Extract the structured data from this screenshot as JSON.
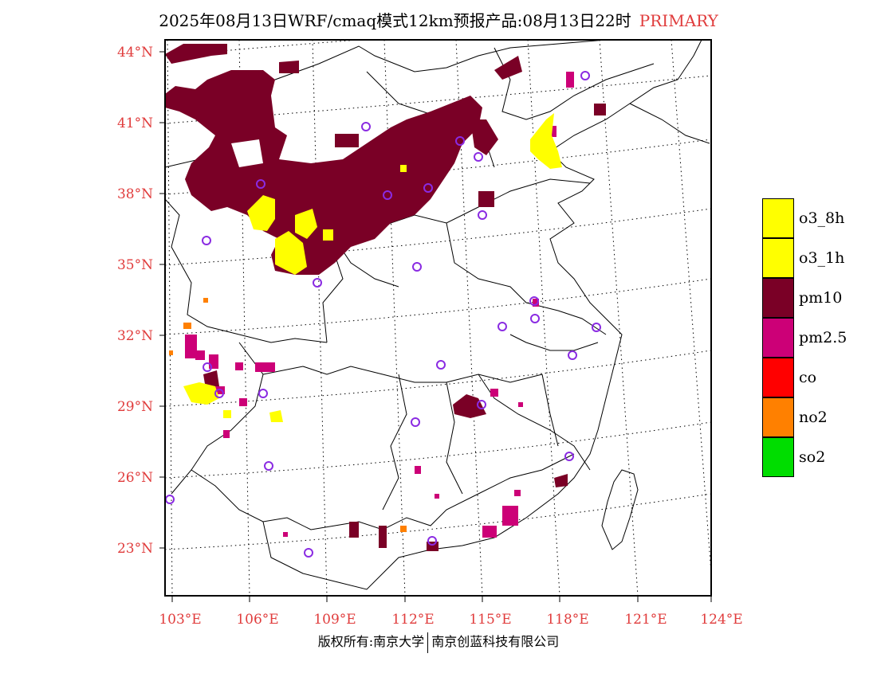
{
  "title": {
    "main": "2025年08月13日WRF/cmaq模式12km预报产品:08月13日22时",
    "tag": "PRIMARY",
    "tag_color": "#e03c3c"
  },
  "axes": {
    "lat_labels": [
      "44°N",
      "41°N",
      "38°N",
      "35°N",
      "32°N",
      "29°N",
      "26°N",
      "23°N"
    ],
    "lon_labels": [
      "103°E",
      "106°E",
      "109°E",
      "112°E",
      "115°E",
      "118°E",
      "121°E",
      "124°E"
    ]
  },
  "legend": [
    {
      "label": "o3_8h",
      "color": "#ffff00"
    },
    {
      "label": "o3_1h",
      "color": "#ffff00"
    },
    {
      "label": "pm10",
      "color": "#7a0026"
    },
    {
      "label": "pm2.5",
      "color": "#cc0077"
    },
    {
      "label": "co",
      "color": "#ff0000"
    },
    {
      "label": "no2",
      "color": "#ff8000"
    },
    {
      "label": "so2",
      "color": "#00dd00"
    }
  ],
  "footer": {
    "left": "版权所有:南京大学",
    "right": "南京创蓝科技有限公司"
  },
  "colors": {
    "pm10": "#7a0026",
    "pm25": "#cc0077",
    "o3": "#ffff00",
    "no2": "#ff8000",
    "station": "#8a2be2"
  }
}
